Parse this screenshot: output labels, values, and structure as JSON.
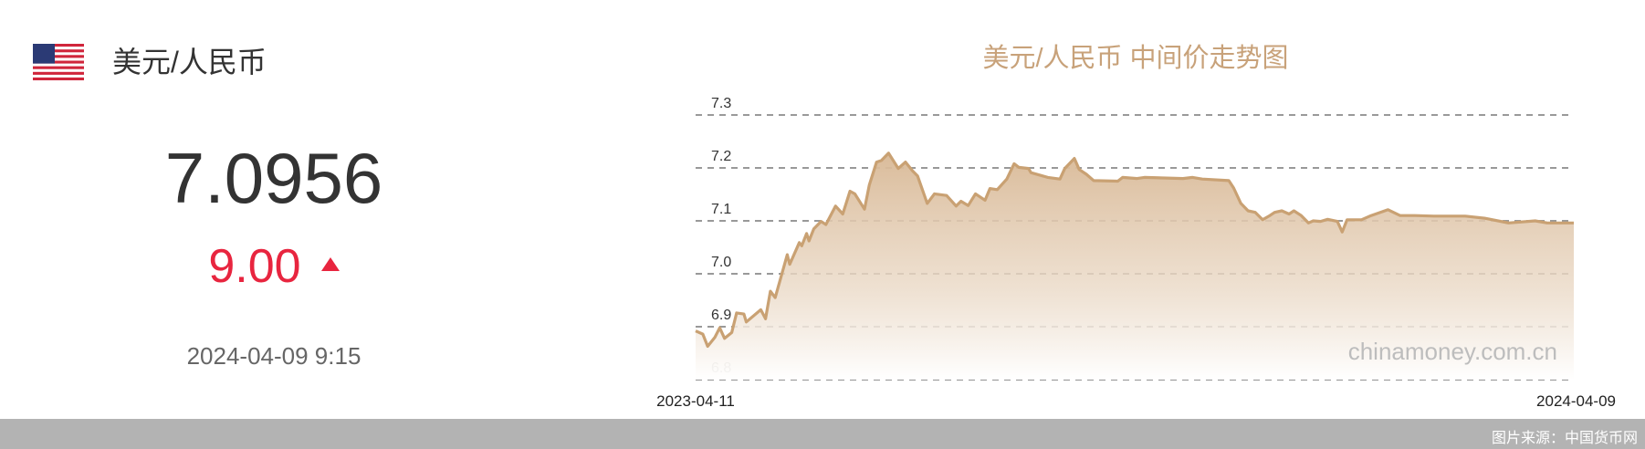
{
  "pair": {
    "title": "美元/人民币",
    "flag_icon": "us-flag-icon"
  },
  "rate": {
    "value": "7.0956",
    "change": "9.00",
    "direction": "up",
    "date": "2024-04-09 9:15",
    "up_color": "#e8253f"
  },
  "footer": {
    "source": "图片来源：中国货币网"
  },
  "chart_data": {
    "type": "area",
    "title": "美元/人民币 中间价走势图",
    "watermark": "chinamoney.com.cn",
    "line_color": "#c9a173",
    "title_color": "#c8a27a",
    "ylim": [
      6.8,
      7.3
    ],
    "yticks": [
      "7.3",
      "7.2",
      "7.1",
      "7.0",
      "6.9",
      "6.8"
    ],
    "xticks": [
      "2023-04-11",
      "2024-04-09"
    ],
    "xlim": [
      "2023-04-11",
      "2024-04-09"
    ],
    "grid": "dashed-horizontal",
    "points": [
      [
        "2023-04-11",
        6.892
      ],
      [
        "2023-04-14",
        6.886
      ],
      [
        "2023-04-16",
        6.863
      ],
      [
        "2023-04-19",
        6.88
      ],
      [
        "2023-04-21",
        6.898
      ],
      [
        "2023-04-23",
        6.878
      ],
      [
        "2023-04-26",
        6.889
      ],
      [
        "2023-04-28",
        6.926
      ],
      [
        "2023-05-01",
        6.924
      ],
      [
        "2023-05-02",
        6.909
      ],
      [
        "2023-05-08",
        6.932
      ],
      [
        "2023-05-10",
        6.915
      ],
      [
        "2023-05-12",
        6.967
      ],
      [
        "2023-05-14",
        6.955
      ],
      [
        "2023-05-19",
        7.036
      ],
      [
        "2023-05-20",
        7.018
      ],
      [
        "2023-05-24",
        7.059
      ],
      [
        "2023-05-25",
        7.053
      ],
      [
        "2023-05-27",
        7.076
      ],
      [
        "2023-05-28",
        7.062
      ],
      [
        "2023-05-30",
        7.085
      ],
      [
        "2023-06-02",
        7.099
      ],
      [
        "2023-06-04",
        7.093
      ],
      [
        "2023-06-08",
        7.128
      ],
      [
        "2023-06-11",
        7.113
      ],
      [
        "2023-06-14",
        7.156
      ],
      [
        "2023-06-16",
        7.151
      ],
      [
        "2023-06-20",
        7.122
      ],
      [
        "2023-06-22",
        7.168
      ],
      [
        "2023-06-25",
        7.211
      ],
      [
        "2023-06-27",
        7.214
      ],
      [
        "2023-06-30",
        7.228
      ],
      [
        "2023-07-04",
        7.199
      ],
      [
        "2023-07-07",
        7.211
      ],
      [
        "2023-07-10",
        7.194
      ],
      [
        "2023-07-12",
        7.185
      ],
      [
        "2023-07-16",
        7.133
      ],
      [
        "2023-07-19",
        7.151
      ],
      [
        "2023-07-24",
        7.148
      ],
      [
        "2023-07-28",
        7.128
      ],
      [
        "2023-07-30",
        7.137
      ],
      [
        "2023-08-02",
        7.129
      ],
      [
        "2023-08-05",
        7.151
      ],
      [
        "2023-08-09",
        7.139
      ],
      [
        "2023-08-11",
        7.161
      ],
      [
        "2023-08-14",
        7.159
      ],
      [
        "2023-08-18",
        7.179
      ],
      [
        "2023-08-21",
        7.208
      ],
      [
        "2023-08-23",
        7.201
      ],
      [
        "2023-08-27",
        7.199
      ],
      [
        "2023-08-28",
        7.191
      ],
      [
        "2023-09-04",
        7.182
      ],
      [
        "2023-09-09",
        7.179
      ],
      [
        "2023-09-11",
        7.199
      ],
      [
        "2023-09-15",
        7.218
      ],
      [
        "2023-09-17",
        7.197
      ],
      [
        "2023-09-20",
        7.188
      ],
      [
        "2023-09-23",
        7.176
      ],
      [
        "2023-10-03",
        7.175
      ],
      [
        "2023-10-05",
        7.182
      ],
      [
        "2023-10-11",
        7.18
      ],
      [
        "2023-10-14",
        7.182
      ],
      [
        "2023-10-30",
        7.18
      ],
      [
        "2023-11-03",
        7.182
      ],
      [
        "2023-11-07",
        7.179
      ],
      [
        "2023-11-18",
        7.176
      ],
      [
        "2023-11-20",
        7.162
      ],
      [
        "2023-11-23",
        7.133
      ],
      [
        "2023-11-26",
        7.119
      ],
      [
        "2023-11-29",
        7.116
      ],
      [
        "2023-12-02",
        7.102
      ],
      [
        "2023-12-05",
        7.11
      ],
      [
        "2023-12-07",
        7.116
      ],
      [
        "2023-12-10",
        7.119
      ],
      [
        "2023-12-13",
        7.113
      ],
      [
        "2023-12-15",
        7.119
      ],
      [
        "2023-12-18",
        7.11
      ],
      [
        "2023-12-21",
        7.096
      ],
      [
        "2023-12-23",
        7.1
      ],
      [
        "2023-12-26",
        7.099
      ],
      [
        "2023-12-29",
        7.103
      ],
      [
        "2024-01-02",
        7.099
      ],
      [
        "2024-01-04",
        7.079
      ],
      [
        "2024-01-06",
        7.102
      ],
      [
        "2024-01-12",
        7.102
      ],
      [
        "2024-01-16",
        7.11
      ],
      [
        "2024-01-23",
        7.121
      ],
      [
        "2024-01-28",
        7.11
      ],
      [
        "2024-02-03",
        7.11
      ],
      [
        "2024-02-11",
        7.109
      ],
      [
        "2024-02-24",
        7.109
      ],
      [
        "2024-03-03",
        7.105
      ],
      [
        "2024-03-13",
        7.096
      ],
      [
        "2024-03-24",
        7.1
      ],
      [
        "2024-03-29",
        7.096
      ],
      [
        "2024-04-09",
        7.096
      ]
    ]
  }
}
